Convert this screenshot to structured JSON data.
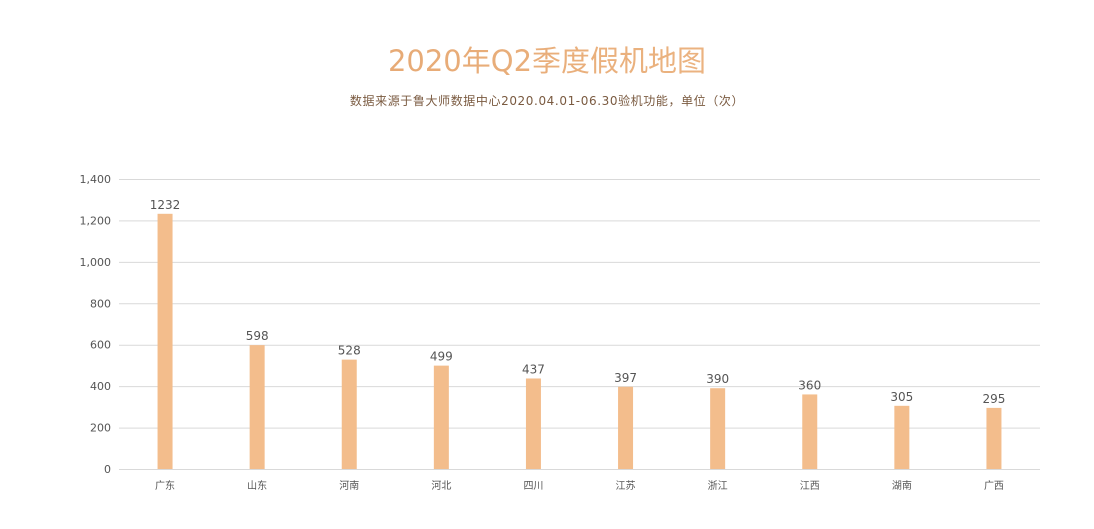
{
  "chart_data": {
    "type": "bar",
    "title": "2020年Q2季度假机地图",
    "subtitle": "数据来源于鲁大师数据中心2020.04.01-06.30验机功能，单位（次）",
    "categories": [
      "广东",
      "山东",
      "河南",
      "河北",
      "四川",
      "江苏",
      "浙江",
      "江西",
      "湖南",
      "广西"
    ],
    "values": [
      1232,
      598,
      528,
      499,
      437,
      397,
      390,
      360,
      305,
      295
    ],
    "ylim": [
      0,
      1400
    ],
    "yticks": [
      "0",
      "200",
      "400",
      "600",
      "800",
      "1,000",
      "1,200",
      "1,400"
    ],
    "xlabel": "",
    "ylabel": "",
    "grid": true,
    "colors": {
      "bar": "#f3bd8c",
      "title_start": "#e2a06a",
      "title_end": "#f0bd8c",
      "subtitle": "#7a5a40",
      "grid": "#d9d9d9",
      "axis_text": "#555555"
    }
  }
}
